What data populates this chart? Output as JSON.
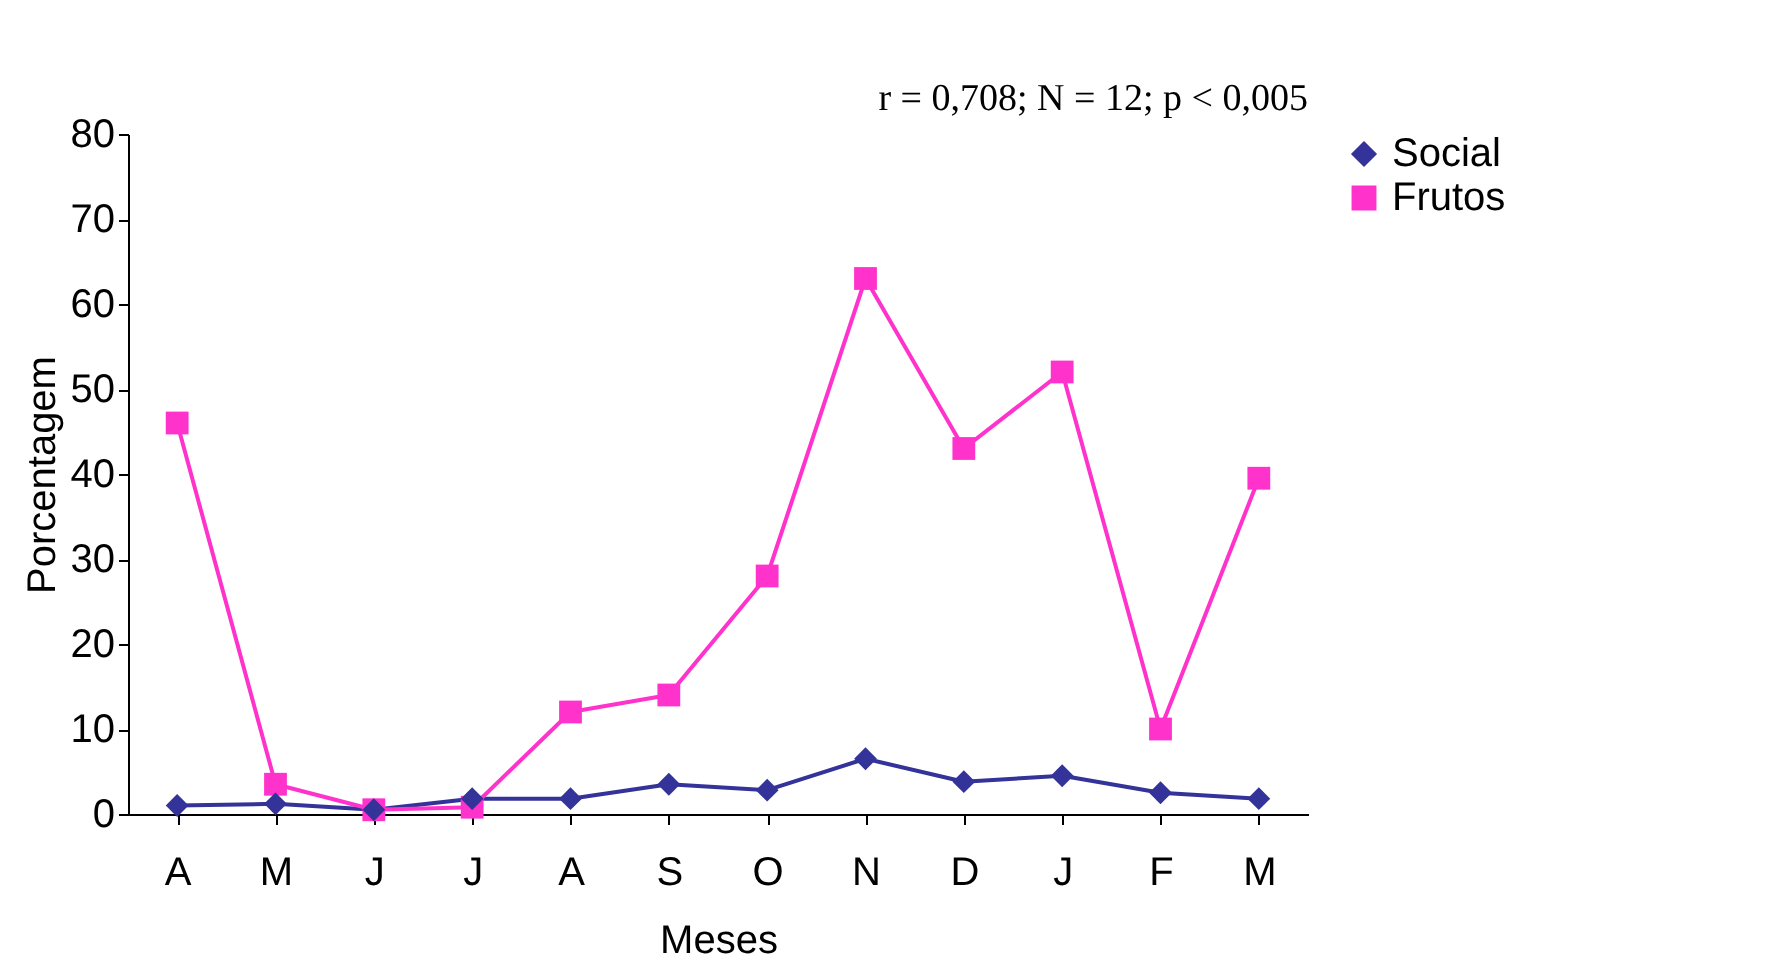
{
  "chart_data": {
    "type": "line",
    "xlabel": "Meses",
    "ylabel": "Porcentagem",
    "annotations": [
      "r = 0,708; N = 12; p < 0,005"
    ],
    "categories": [
      "A",
      "M",
      "J",
      "J",
      "A",
      "S",
      "O",
      "N",
      "D",
      "J",
      "F",
      "M"
    ],
    "ylim": [
      0,
      80
    ],
    "yticks": [
      0,
      10,
      20,
      30,
      40,
      50,
      60,
      70,
      80
    ],
    "grid": false,
    "legend": "right",
    "line_style": "solid",
    "series": [
      {
        "name": "Social",
        "color": "#333399",
        "marker": "diamond",
        "values": [
          1,
          1.2,
          0.5,
          1.8,
          1.8,
          3.5,
          2.8,
          6.5,
          3.8,
          4.5,
          2.5,
          1.8
        ]
      },
      {
        "name": "Frutos",
        "color": "#ff33cc",
        "marker": "square",
        "values": [
          46,
          3.5,
          0.5,
          0.8,
          12,
          14,
          28,
          63,
          43,
          52,
          10,
          39.5
        ]
      }
    ]
  }
}
